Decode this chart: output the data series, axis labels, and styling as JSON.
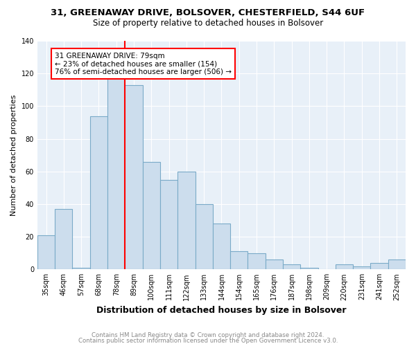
{
  "title": "31, GREENAWAY DRIVE, BOLSOVER, CHESTERFIELD, S44 6UF",
  "subtitle": "Size of property relative to detached houses in Bolsover",
  "xlabel": "Distribution of detached houses by size in Bolsover",
  "ylabel": "Number of detached properties",
  "categories": [
    "35sqm",
    "46sqm",
    "57sqm",
    "68sqm",
    "78sqm",
    "89sqm",
    "100sqm",
    "111sqm",
    "122sqm",
    "133sqm",
    "144sqm",
    "154sqm",
    "165sqm",
    "176sqm",
    "187sqm",
    "198sqm",
    "209sqm",
    "220sqm",
    "231sqm",
    "241sqm",
    "252sqm"
  ],
  "values": [
    21,
    37,
    1,
    94,
    118,
    113,
    66,
    55,
    60,
    40,
    28,
    11,
    10,
    6,
    3,
    1,
    0,
    3,
    2,
    4,
    6
  ],
  "bar_color": "#ccdded",
  "bar_edge_color": "#7aaac8",
  "property_line_color": "red",
  "annotation_text": "31 GREENAWAY DRIVE: 79sqm\n← 23% of detached houses are smaller (154)\n76% of semi-detached houses are larger (506) →",
  "annotation_box_color": "white",
  "annotation_box_edge_color": "red",
  "footer1": "Contains HM Land Registry data © Crown copyright and database right 2024.",
  "footer2": "Contains public sector information licensed under the Open Government Licence v3.0.",
  "ylim": [
    0,
    140
  ],
  "background_color": "#e8f0f8"
}
